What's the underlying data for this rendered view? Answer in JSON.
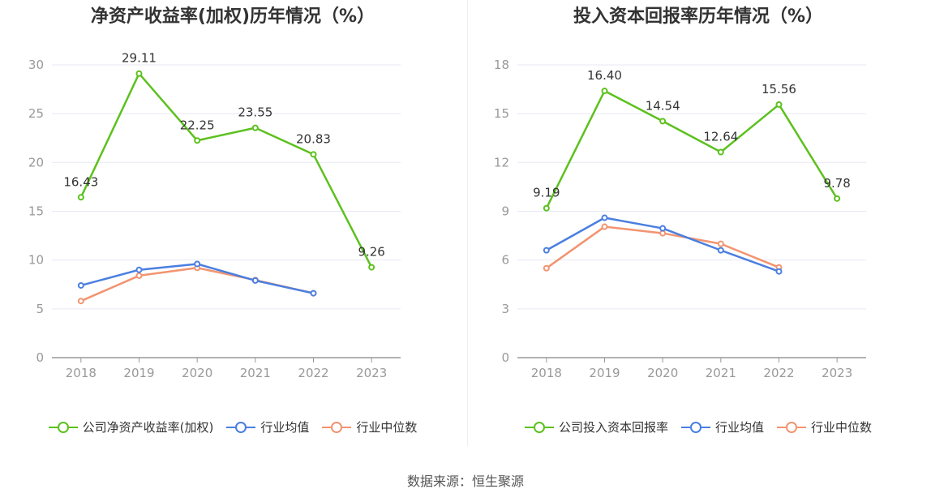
{
  "colors": {
    "company": "#5cc11e",
    "avg": "#4a7fe0",
    "median": "#f29470",
    "grid": "#e6e9f5",
    "axis": "#999999",
    "tick": "#999999"
  },
  "source": "数据来源：恒生聚源",
  "chart_data": [
    {
      "type": "line",
      "title": "净资产收益率(加权)历年情况（%）",
      "categories": [
        "2018",
        "2019",
        "2020",
        "2021",
        "2022",
        "2023"
      ],
      "ylim": [
        0,
        30
      ],
      "yticks": [
        0,
        5,
        10,
        15,
        20,
        25,
        30
      ],
      "grid": true,
      "legend_position": "bottom",
      "series": [
        {
          "name": "公司净资产收益率(加权)",
          "values": [
            16.43,
            29.11,
            22.25,
            23.55,
            20.83,
            9.26
          ],
          "labels": [
            "16.43",
            "29.11",
            "22.25",
            "23.55",
            "20.83",
            "9.26"
          ]
        },
        {
          "name": "行业均值",
          "values": [
            7.4,
            9.0,
            9.6,
            7.9,
            6.6,
            null
          ]
        },
        {
          "name": "行业中位数",
          "values": [
            5.8,
            8.4,
            9.2,
            7.95,
            6.6,
            null
          ]
        }
      ]
    },
    {
      "type": "line",
      "title": "投入资本回报率历年情况（%）",
      "categories": [
        "2018",
        "2019",
        "2020",
        "2021",
        "2022",
        "2023"
      ],
      "ylim": [
        0,
        18
      ],
      "yticks": [
        0,
        3,
        6,
        9,
        12,
        15,
        18
      ],
      "grid": true,
      "legend_position": "bottom",
      "series": [
        {
          "name": "公司投入资本回报率",
          "values": [
            9.19,
            16.4,
            14.54,
            12.64,
            15.56,
            9.78
          ],
          "labels": [
            "9.19",
            "16.40",
            "14.54",
            "12.64",
            "15.56",
            "9.78"
          ]
        },
        {
          "name": "行业均值",
          "values": [
            6.6,
            8.6,
            7.95,
            6.6,
            5.3,
            null
          ]
        },
        {
          "name": "行业中位数",
          "values": [
            5.5,
            8.05,
            7.65,
            7.0,
            5.55,
            null
          ]
        }
      ]
    }
  ]
}
